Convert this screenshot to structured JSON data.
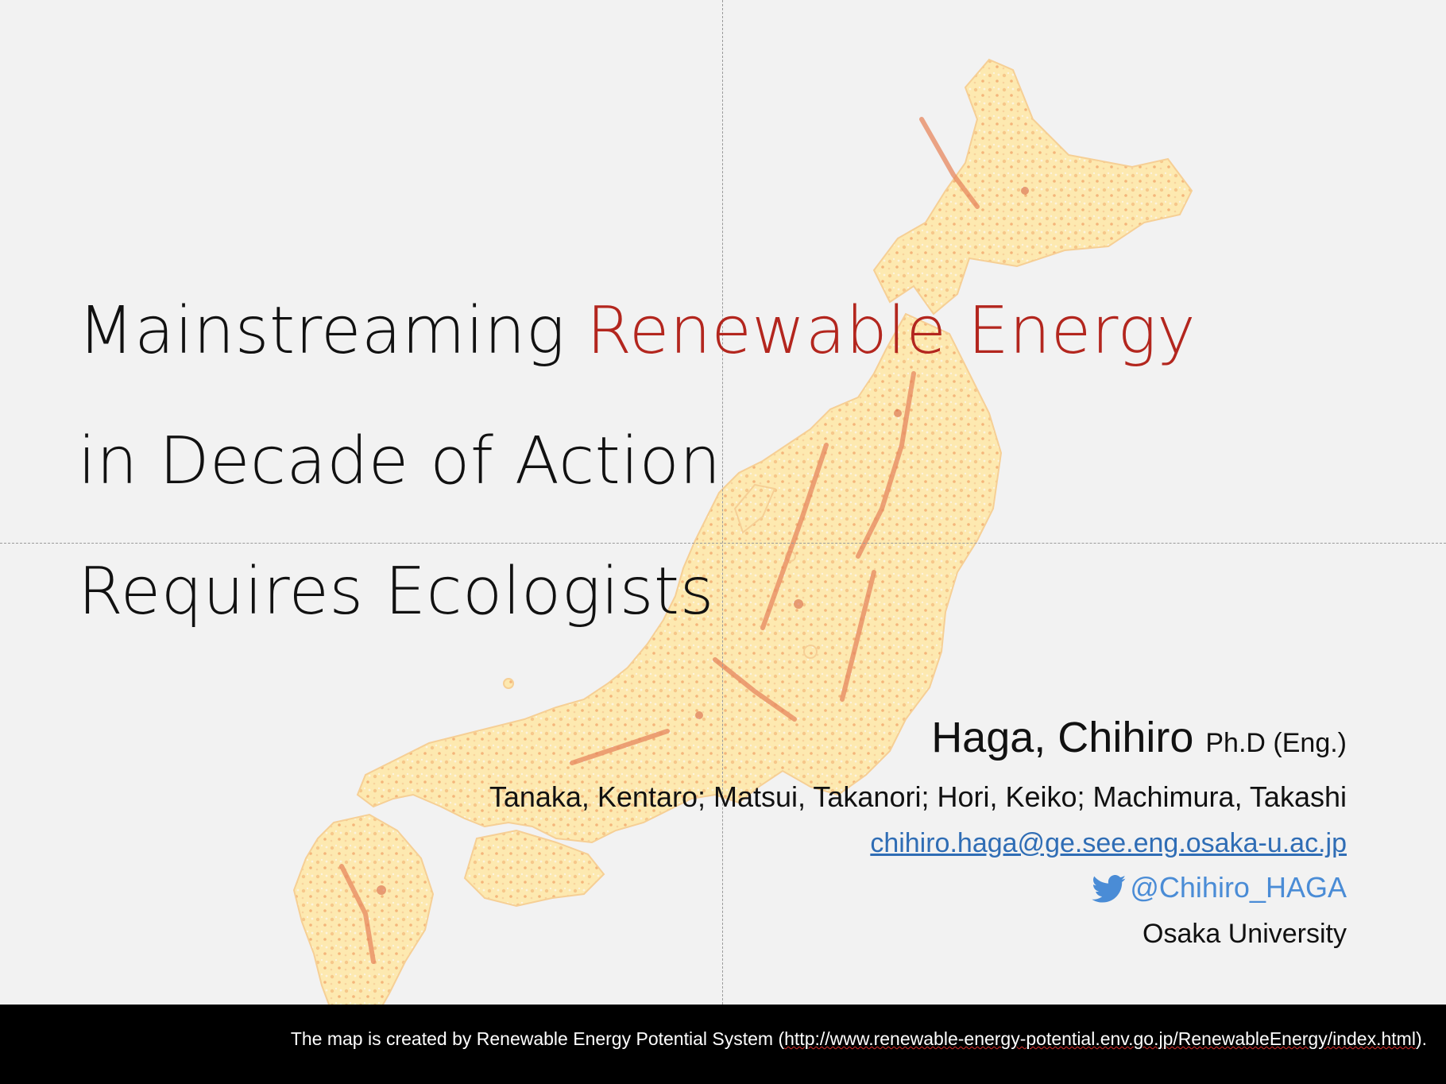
{
  "title": {
    "line1_prefix": "Mainstreaming ",
    "line1_accent": "Renewable Energy",
    "line2": "in Decade of Action",
    "line3": "Requires Ecologists"
  },
  "authors": {
    "presenter_name": "Haga, Chihiro",
    "presenter_degree": "Ph.D (Eng.)",
    "coauthors": "Tanaka, Kentaro; Matsui, Takanori; Hori, Keiko; Machimura, Takashi",
    "email": "chihiro.haga@ge.see.eng.osaka-u.ac.jp",
    "twitter_handle": "@Chihiro_HAGA",
    "affiliation": "Osaka University"
  },
  "footer": {
    "credit_prefix": "The map is created by Renewable Energy Potential System (",
    "credit_url": "http://www.renewable-energy-potential.env.go.jp/RenewableEnergy/index.html",
    "credit_suffix": ")."
  },
  "colors": {
    "accent_title": "#b3261e",
    "link_blue": "#2f6db5",
    "twitter_blue": "#4a8cd6",
    "map_light": "#fde9b0",
    "map_mid": "#f2a46a",
    "map_dark": "#d65a3c"
  },
  "icons": {
    "twitter": "twitter-bird-icon"
  }
}
